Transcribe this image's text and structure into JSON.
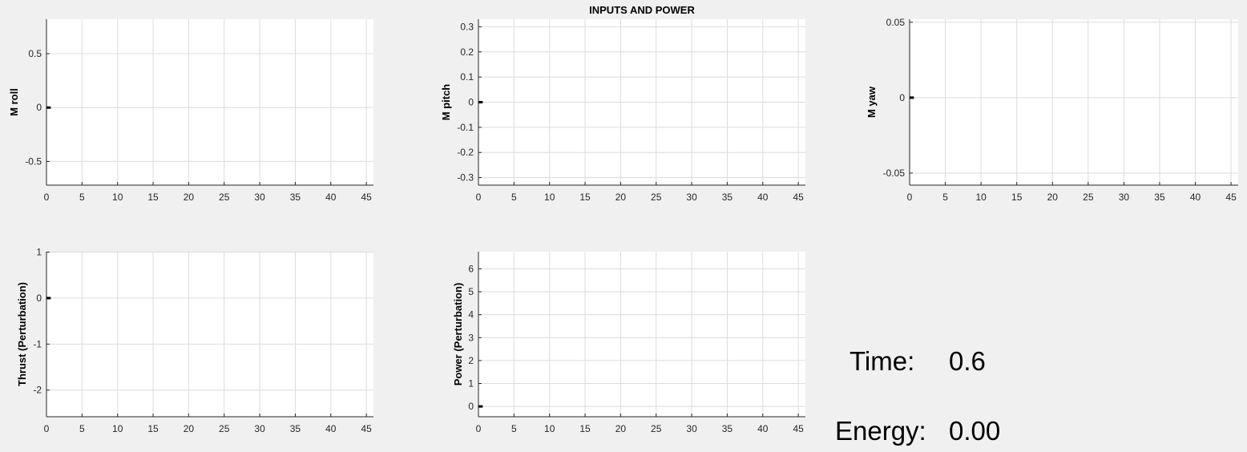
{
  "figure": {
    "title": "INPUTS AND POWER",
    "background": "#f0f0f0",
    "axes_color": "#262626",
    "grid_color": "#dcdcdc",
    "line_color": "#000000"
  },
  "chart_data": [
    {
      "type": "line",
      "name": "m-roll",
      "title": "",
      "xlabel": "",
      "ylabel": "M roll",
      "xlim": [
        0,
        46
      ],
      "ylim": [
        -0.72,
        0.82
      ],
      "xticks": [
        0,
        5,
        10,
        15,
        20,
        25,
        30,
        35,
        40,
        45
      ],
      "yticks": [
        -0.5,
        0,
        0.5
      ],
      "ytick_labels": [
        "-0.5",
        "0",
        "0.5"
      ],
      "grid": true,
      "series": [
        {
          "name": "M roll",
          "x": [
            0,
            0.6
          ],
          "y": [
            0,
            0
          ]
        }
      ]
    },
    {
      "type": "line",
      "name": "m-pitch",
      "title": "INPUTS AND POWER",
      "xlabel": "",
      "ylabel": "M pitch",
      "xlim": [
        0,
        46
      ],
      "ylim": [
        -0.33,
        0.33
      ],
      "xticks": [
        0,
        5,
        10,
        15,
        20,
        25,
        30,
        35,
        40,
        45
      ],
      "yticks": [
        -0.3,
        -0.2,
        -0.1,
        0,
        0.1,
        0.2,
        0.3
      ],
      "ytick_labels": [
        "-0.3",
        "-0.2",
        "-0.1",
        "0",
        "0.1",
        "0.2",
        "0.3"
      ],
      "grid": true,
      "series": [
        {
          "name": "M pitch",
          "x": [
            0,
            0.6
          ],
          "y": [
            0,
            0
          ]
        }
      ]
    },
    {
      "type": "line",
      "name": "m-yaw",
      "title": "",
      "xlabel": "",
      "ylabel": "M yaw",
      "xlim": [
        0,
        46
      ],
      "ylim": [
        -0.058,
        0.052
      ],
      "xticks": [
        0,
        5,
        10,
        15,
        20,
        25,
        30,
        35,
        40,
        45
      ],
      "yticks": [
        -0.05,
        0,
        0.05
      ],
      "ytick_labels": [
        "-0.05",
        "0",
        "0.05"
      ],
      "grid": true,
      "series": [
        {
          "name": "M yaw",
          "x": [
            0,
            0.6
          ],
          "y": [
            0,
            0
          ]
        }
      ]
    },
    {
      "type": "line",
      "name": "thrust",
      "title": "",
      "xlabel": "",
      "ylabel": "Thrust (Perturbation)",
      "xlim": [
        0,
        46
      ],
      "ylim": [
        -2.58,
        1.01
      ],
      "xticks": [
        0,
        5,
        10,
        15,
        20,
        25,
        30,
        35,
        40,
        45
      ],
      "yticks": [
        -2,
        -1,
        0,
        1
      ],
      "ytick_labels": [
        "-2",
        "-1",
        "0",
        "1"
      ],
      "grid": true,
      "series": [
        {
          "name": "Thrust",
          "x": [
            0,
            0.6
          ],
          "y": [
            0,
            0
          ]
        }
      ]
    },
    {
      "type": "line",
      "name": "power",
      "title": "",
      "xlabel": "",
      "ylabel": "Power (Perturbation)",
      "xlim": [
        0,
        46
      ],
      "ylim": [
        -0.45,
        6.75
      ],
      "xticks": [
        0,
        5,
        10,
        15,
        20,
        25,
        30,
        35,
        40,
        45
      ],
      "yticks": [
        0,
        1,
        2,
        3,
        4,
        5,
        6
      ],
      "ytick_labels": [
        "0",
        "1",
        "2",
        "3",
        "4",
        "5",
        "6"
      ],
      "grid": true,
      "series": [
        {
          "name": "Power",
          "x": [
            0,
            0.6
          ],
          "y": [
            0,
            0
          ]
        }
      ]
    }
  ],
  "readouts": {
    "time_label": "Time:",
    "time_value": "0.6",
    "energy_label": "Energy:",
    "energy_value": "0.00"
  }
}
